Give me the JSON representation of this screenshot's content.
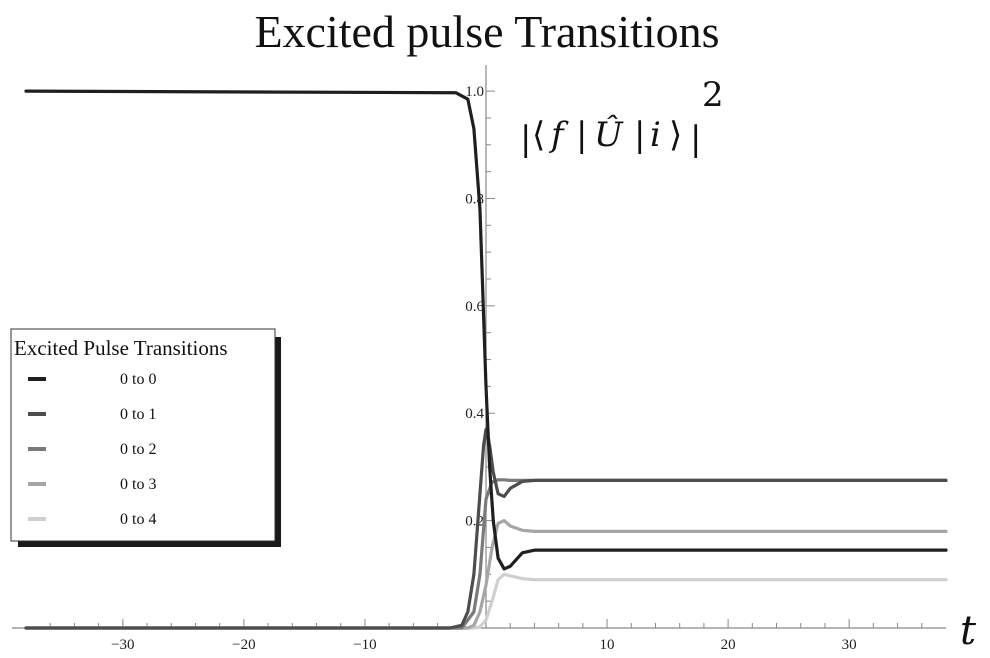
{
  "chart_data": {
    "type": "line",
    "title": "Excited pulse Transitions",
    "xlabel": "t",
    "ylabel_expression": {
      "bar": "|",
      "open_bracket": "⟨",
      "final_state": "f",
      "bra_bar": "|",
      "operator": "Û",
      "ket_bar": "|",
      "initial_state": "i",
      "close_bracket": "⟩",
      "exponent": "2"
    },
    "xlim": [
      -38,
      38
    ],
    "ylim": [
      0,
      1.03
    ],
    "x_ticks": [
      -30,
      -20,
      -10,
      10,
      20,
      30
    ],
    "y_ticks": [
      0.2,
      0.4,
      0.6,
      0.8,
      1.0
    ],
    "y_tick_labels": [
      "0.2",
      "0.4",
      "0.6",
      "0.8",
      "1.0"
    ],
    "grid": false,
    "legend": {
      "title": "Excited Pulse Transitions",
      "placement": "left"
    },
    "series": [
      {
        "name": "0 to 0",
        "color": "#1f1f1f",
        "x": [
          -38,
          -2.5,
          -1.5,
          -1.0,
          -0.5,
          0.0,
          0.3,
          0.6,
          1.0,
          1.5,
          2.0,
          3.0,
          4.0,
          6.0,
          38
        ],
        "y": [
          1.0,
          0.997,
          0.985,
          0.93,
          0.78,
          0.45,
          0.3,
          0.2,
          0.13,
          0.11,
          0.115,
          0.14,
          0.145,
          0.145,
          0.145
        ]
      },
      {
        "name": "0 to 1",
        "color": "#4d4d4d",
        "x": [
          -38,
          -3,
          -2,
          -1.5,
          -1.0,
          -0.5,
          -0.2,
          0.0,
          0.3,
          0.6,
          1.0,
          1.5,
          2.0,
          3.0,
          4.0,
          38
        ],
        "y": [
          0.0,
          0.0,
          0.005,
          0.03,
          0.1,
          0.25,
          0.34,
          0.37,
          0.34,
          0.29,
          0.25,
          0.245,
          0.26,
          0.273,
          0.275,
          0.275
        ]
      },
      {
        "name": "0 to 2",
        "color": "#7a7a7a",
        "x": [
          -38,
          -2.0,
          -1.0,
          -0.5,
          0.0,
          0.5,
          1.0,
          1.5,
          2.0,
          3.0,
          4.0,
          38
        ],
        "y": [
          0.0,
          0.0,
          0.03,
          0.1,
          0.24,
          0.272,
          0.276,
          0.276,
          0.275,
          0.275,
          0.275,
          0.275
        ]
      },
      {
        "name": "0 to 3",
        "color": "#a6a6a6",
        "x": [
          -38,
          -1.5,
          -1.0,
          -0.5,
          0.0,
          0.5,
          1.0,
          1.5,
          2.0,
          3.0,
          4.0,
          38
        ],
        "y": [
          0.0,
          0.0,
          0.005,
          0.03,
          0.08,
          0.15,
          0.195,
          0.2,
          0.19,
          0.182,
          0.18,
          0.18
        ]
      },
      {
        "name": "0 to 4",
        "color": "#cfcfcf",
        "x": [
          -38,
          -1.0,
          -0.5,
          0.0,
          0.5,
          1.0,
          1.5,
          2.0,
          3.0,
          4.0,
          38
        ],
        "y": [
          0.0,
          0.0,
          0.002,
          0.015,
          0.05,
          0.09,
          0.1,
          0.097,
          0.092,
          0.09,
          0.09
        ]
      }
    ]
  }
}
